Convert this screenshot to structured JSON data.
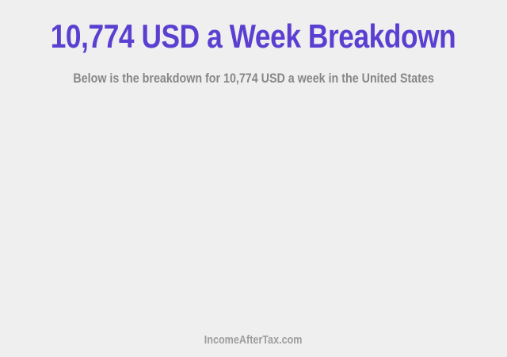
{
  "theme": {
    "background": "#efefef",
    "title-color": "#5b3fd1",
    "subtitle-color": "#878787",
    "footer-color": "#9d9d9d"
  },
  "header": {
    "title": "10,774 USD a Week Breakdown",
    "subtitle": "Below is the breakdown for 10,774 USD a week in the United States"
  },
  "footer": {
    "site_label": "IncomeAfterTax.com"
  }
}
